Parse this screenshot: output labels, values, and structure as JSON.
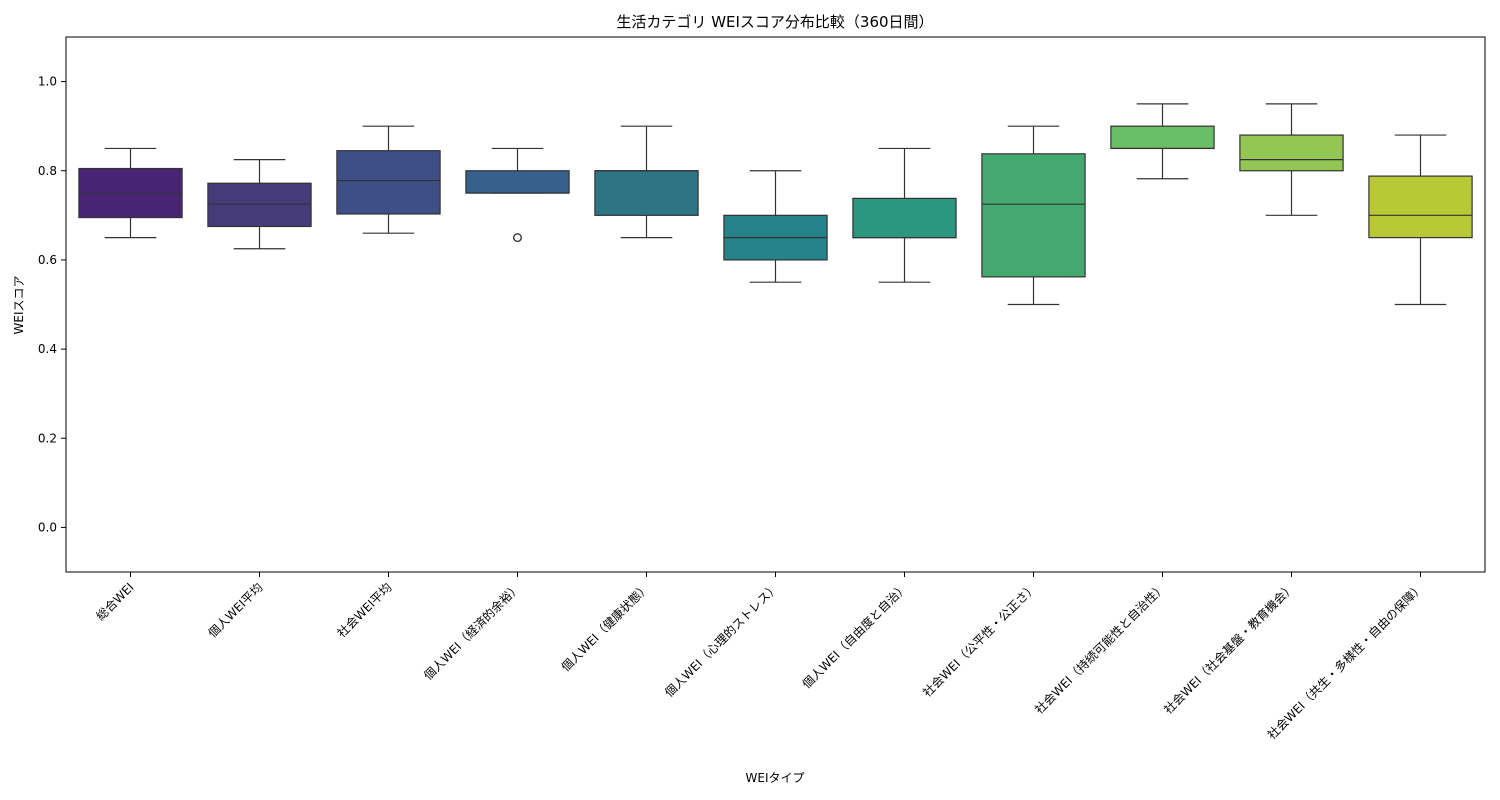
{
  "chart_data": {
    "type": "box",
    "title": "生活カテゴリ WEIスコア分布比較（360日間）",
    "xlabel": "WEIタイプ",
    "ylabel": "WEIスコア",
    "ylim": [
      -0.1,
      1.1
    ],
    "yticks": [
      "0.0",
      "0.2",
      "0.4",
      "0.6",
      "0.8",
      "1.0"
    ],
    "grid": false,
    "legend": "none",
    "categories": [
      "総合WEI",
      "個人WEI平均",
      "社会WEI平均",
      "個人WEI（経済的余裕）",
      "個人WEI（健康状態）",
      "個人WEI（心理的ストレス）",
      "個人WEI（自由度と自治）",
      "社会WEI（公平性・公正さ）",
      "社会WEI（持続可能性と自治性）",
      "社会WEI（社会基盤・教育機会）",
      "社会WEI（共生・多様性・自由の保障）"
    ],
    "boxes": [
      {
        "whisker_low": 0.65,
        "q1": 0.695,
        "median": 0.75,
        "q3": 0.805,
        "whisker_high": 0.85,
        "outliers": [],
        "color": "#482475"
      },
      {
        "whisker_low": 0.625,
        "q1": 0.675,
        "median": 0.725,
        "q3": 0.772,
        "whisker_high": 0.825,
        "outliers": [],
        "color": "#463b7a"
      },
      {
        "whisker_low": 0.66,
        "q1": 0.703,
        "median": 0.778,
        "q3": 0.845,
        "whisker_high": 0.9,
        "outliers": [],
        "color": "#3e4e87"
      },
      {
        "whisker_low": 0.75,
        "q1": 0.75,
        "median": 0.75,
        "q3": 0.8,
        "whisker_high": 0.85,
        "outliers": [
          0.65
        ],
        "color": "#36608d"
      },
      {
        "whisker_low": 0.65,
        "q1": 0.7,
        "median": 0.8,
        "q3": 0.8,
        "whisker_high": 0.9,
        "outliers": [],
        "color": "#2e7485"
      },
      {
        "whisker_low": 0.55,
        "q1": 0.6,
        "median": 0.65,
        "q3": 0.7,
        "whisker_high": 0.8,
        "outliers": [],
        "color": "#26838a"
      },
      {
        "whisker_low": 0.55,
        "q1": 0.65,
        "median": 0.65,
        "q3": 0.738,
        "whisker_high": 0.85,
        "outliers": [],
        "color": "#2a977e"
      },
      {
        "whisker_low": 0.5,
        "q1": 0.562,
        "median": 0.725,
        "q3": 0.838,
        "whisker_high": 0.9,
        "outliers": [],
        "color": "#44a96e"
      },
      {
        "whisker_low": 0.782,
        "q1": 0.85,
        "median": 0.85,
        "q3": 0.9,
        "whisker_high": 0.95,
        "outliers": [],
        "color": "#6abf66"
      },
      {
        "whisker_low": 0.7,
        "q1": 0.8,
        "median": 0.825,
        "q3": 0.88,
        "whisker_high": 0.95,
        "outliers": [],
        "color": "#93c653"
      },
      {
        "whisker_low": 0.5,
        "q1": 0.65,
        "median": 0.7,
        "q3": 0.788,
        "whisker_high": 0.88,
        "outliers": [],
        "color": "#b9c835"
      }
    ]
  }
}
